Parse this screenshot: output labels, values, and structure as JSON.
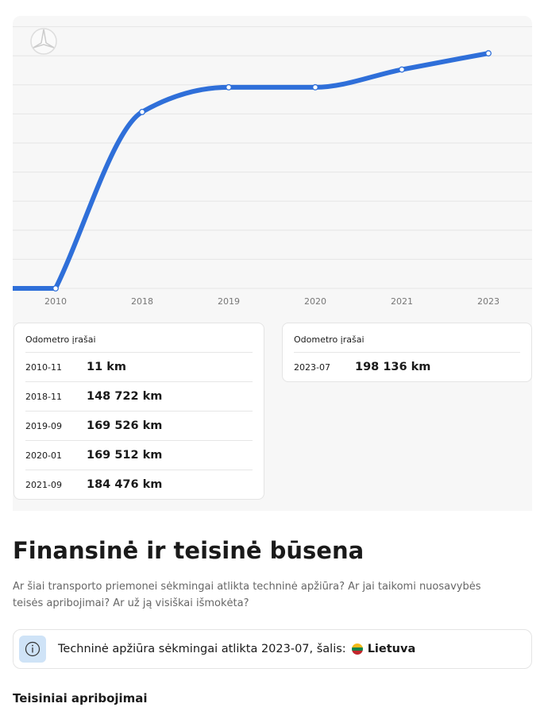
{
  "chart_data": {
    "type": "line",
    "categories": [
      "2010",
      "2018",
      "2019",
      "2020",
      "2021",
      "2023"
    ],
    "values": [
      11,
      148722,
      169526,
      169512,
      184476,
      198136
    ],
    "color": "#2f6fd9",
    "ylim": [
      0,
      225000
    ]
  },
  "odometer_cards": [
    {
      "title": "Odometro įrašai",
      "rows": [
        {
          "date": "2010-11",
          "reading": "11 km"
        },
        {
          "date": "2018-11",
          "reading": "148 722 km"
        },
        {
          "date": "2019-09",
          "reading": "169 526 km"
        },
        {
          "date": "2020-01",
          "reading": "169 512 km"
        },
        {
          "date": "2021-09",
          "reading": "184 476 km"
        }
      ]
    },
    {
      "title": "Odometro įrašai",
      "rows": [
        {
          "date": "2023-07",
          "reading": "198 136 km"
        }
      ]
    }
  ],
  "section": {
    "title": "Finansinė ir teisinė būsena",
    "description": "Ar šiai transporto priemonei sėkmingai atlikta techninė apžiūra? Ar jai taikomi nuosavybės teisės apribojimai? Ar už ją visiškai išmokėta?",
    "inspection": {
      "text": "Techninė apžiūra sėkmingai atlikta 2023-07, šalis:",
      "country": "Lietuva"
    },
    "subheading": "Teisiniai apribojimai"
  }
}
